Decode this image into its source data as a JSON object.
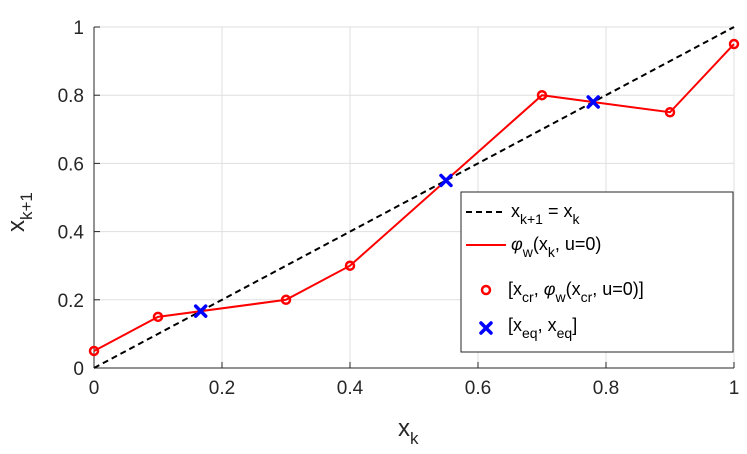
{
  "chart_data": {
    "type": "line",
    "xlabel": "x",
    "xlabel_sub": "k",
    "ylabel": "x",
    "ylabel_sub": "k+1",
    "xlim": [
      0,
      1
    ],
    "ylim": [
      0,
      1
    ],
    "xticks": [
      "0",
      "0.2",
      "0.4",
      "0.6",
      "0.8",
      "1"
    ],
    "yticks": [
      "0",
      "0.2",
      "0.4",
      "0.6",
      "0.8",
      "1"
    ],
    "grid": true,
    "legend_position": "bottom-right",
    "series": [
      {
        "name": "x_{k+1} = x_k",
        "style": "dashed",
        "color": "#000000",
        "x": [
          0,
          1
        ],
        "y": [
          0,
          1
        ]
      },
      {
        "name": "φ_w(x_k, u=0)",
        "style": "solid",
        "color": "#ff0000",
        "x": [
          0,
          0.1,
          0.3,
          0.4,
          0.7,
          0.9,
          1.0
        ],
        "y": [
          0.05,
          0.15,
          0.2,
          0.3,
          0.8,
          0.75,
          0.95
        ]
      },
      {
        "name": "[x_cr, φ_w(x_cr, u=0)]",
        "style": "circle-marker",
        "color": "#ff0000",
        "x": [
          0,
          0.1,
          0.3,
          0.4,
          0.7,
          0.9,
          1.0
        ],
        "y": [
          0.05,
          0.15,
          0.2,
          0.3,
          0.8,
          0.75,
          0.95
        ]
      },
      {
        "name": "[x_eq, x_eq]",
        "style": "x-marker",
        "color": "#0000ff",
        "x": [
          0.1667,
          0.55,
          0.78
        ],
        "y": [
          0.1667,
          0.55,
          0.78
        ]
      }
    ],
    "legend": {
      "entries": [
        {
          "base": "x",
          "sub1": "k+1",
          "mid": " = x",
          "sub2": "k",
          "tail": ""
        },
        {
          "greek": "φ",
          "gsub": "w",
          "mid": "(x",
          "sub1": "k",
          "tail": ", u=0)"
        },
        {
          "pre": "[x",
          "sub1": "cr",
          "mid": ", ",
          "greek": "φ",
          "gsub": "w",
          "mid2": "(x",
          "sub2": "cr",
          "tail": ", u=0)]"
        },
        {
          "pre": "[x",
          "sub1": "eq",
          "mid": ", x",
          "sub2": "eq",
          "tail": "]"
        }
      ]
    }
  }
}
